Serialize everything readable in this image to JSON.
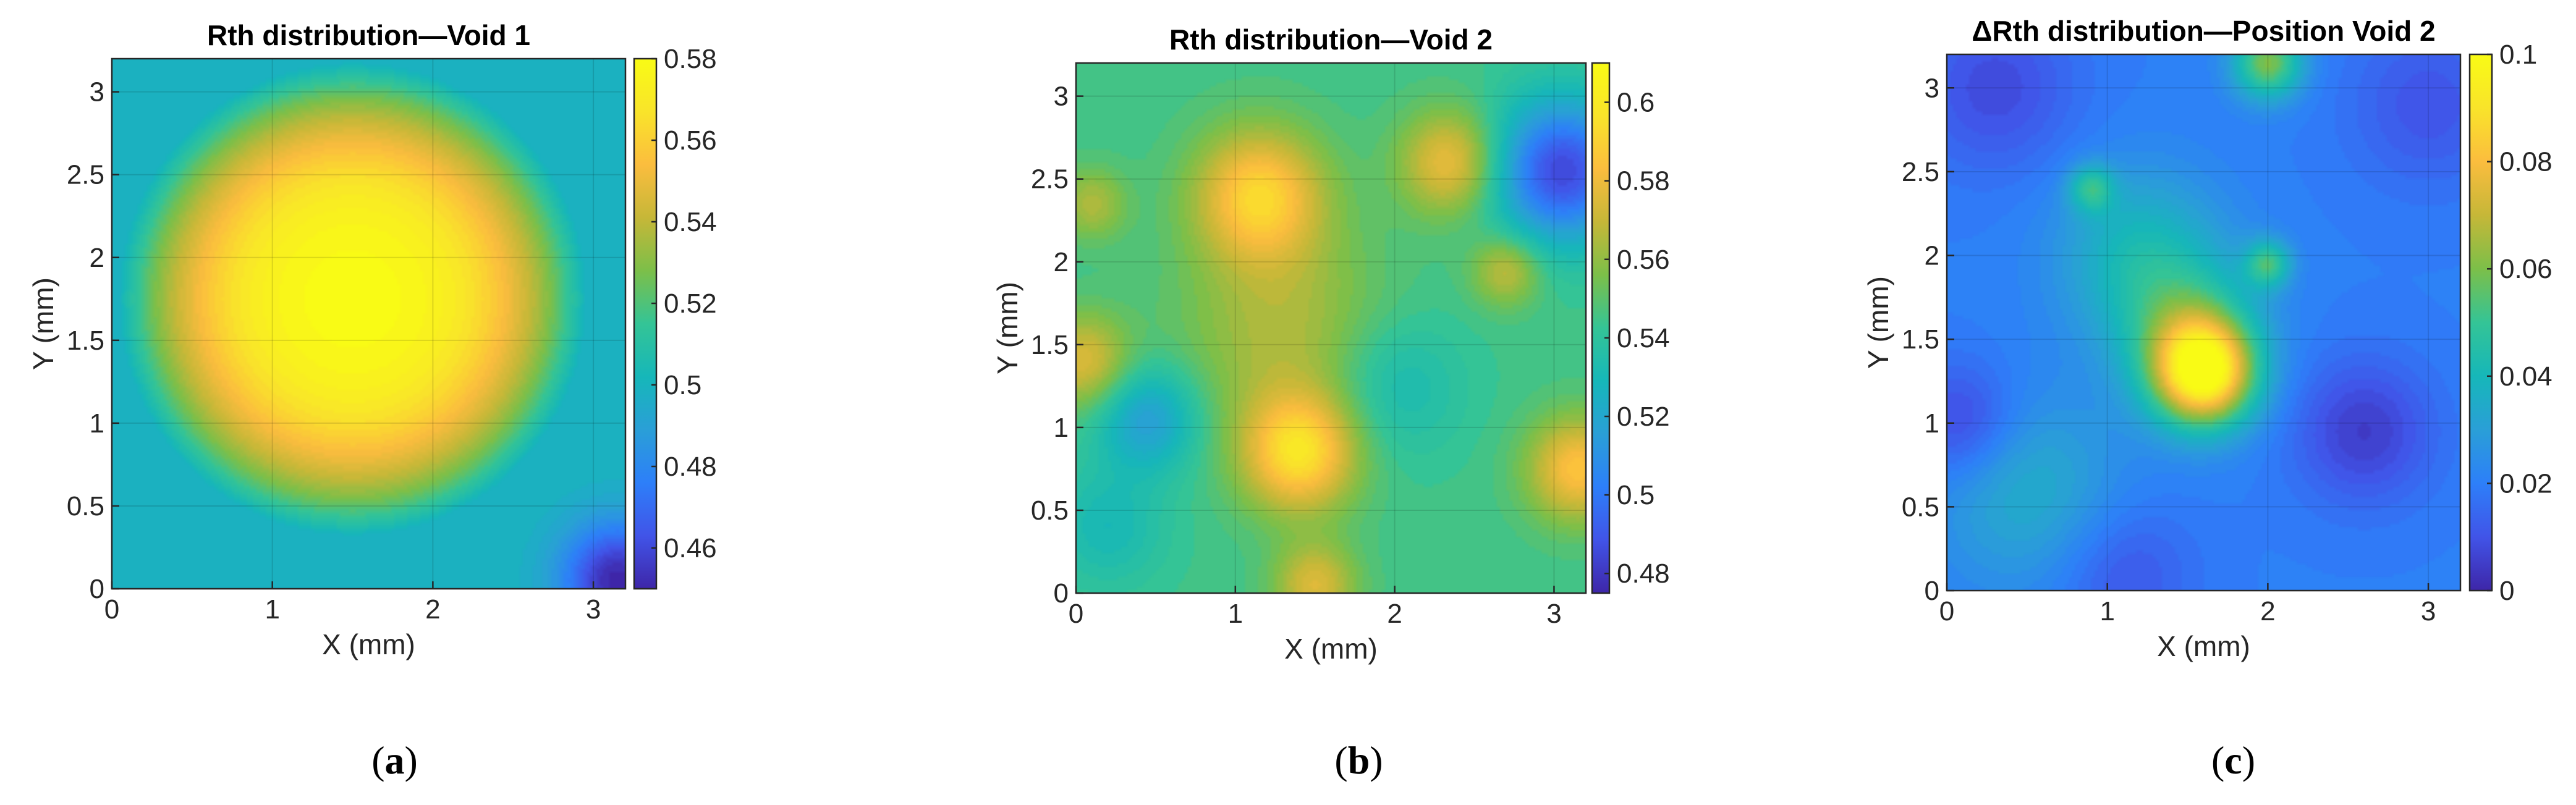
{
  "colors": {
    "colormap": [
      "#3e26a8",
      "#4154e8",
      "#2d7ff9",
      "#2a9fd7",
      "#16b7b9",
      "#34c496",
      "#7cbf49",
      "#c6b738",
      "#fbbd3e",
      "#f9e42a",
      "#f9fb15"
    ],
    "frame": "#262626",
    "grid": "#000000"
  },
  "chart_data": [
    {
      "id": "a",
      "type": "heatmap",
      "title": "Rth distribution—Void 1",
      "xlabel": "X (mm)",
      "ylabel": "Y (mm)",
      "xlim": [
        0,
        3.2
      ],
      "ylim": [
        0,
        3.2
      ],
      "xticks": [
        0,
        1,
        2,
        3
      ],
      "xtick_labels": [
        "0",
        "1",
        "2",
        "3"
      ],
      "yticks": [
        0,
        0.5,
        1,
        1.5,
        2,
        2.5,
        3
      ],
      "ytick_labels": [
        "0",
        "0.5",
        "1",
        "1.5",
        "2",
        "2.5",
        "3"
      ],
      "clim": [
        0.45,
        0.58
      ],
      "cticks": [
        0.46,
        0.48,
        0.5,
        0.52,
        0.54,
        0.56,
        0.58
      ],
      "ctick_labels": [
        "0.46",
        "0.48",
        "0.5",
        "0.52",
        "0.54",
        "0.56",
        "0.58"
      ],
      "caption": "a",
      "features": [
        {
          "kind": "dome",
          "cx": 1.5,
          "cy": 1.75,
          "peak": 0.58,
          "edge": 0.5,
          "radius": 1.45
        },
        {
          "kind": "bump",
          "x": 3.15,
          "y": 0.05,
          "amp": -0.05,
          "sigma": 0.25
        }
      ]
    },
    {
      "id": "b",
      "type": "heatmap",
      "title": "Rth distribution—Void 2",
      "xlabel": "X (mm)",
      "ylabel": "Y (mm)",
      "xlim": [
        0,
        3.2
      ],
      "ylim": [
        0,
        3.2
      ],
      "xticks": [
        0,
        1,
        2,
        3
      ],
      "xtick_labels": [
        "0",
        "1",
        "2",
        "3"
      ],
      "yticks": [
        0,
        0.5,
        1,
        1.5,
        2,
        2.5,
        3
      ],
      "ytick_labels": [
        "0",
        "0.5",
        "1",
        "1.5",
        "2",
        "2.5",
        "3"
      ],
      "clim": [
        0.475,
        0.61
      ],
      "cticks": [
        0.48,
        0.5,
        0.52,
        0.54,
        0.56,
        0.58,
        0.6
      ],
      "ctick_labels": [
        "0.48",
        "0.5",
        "0.52",
        "0.54",
        "0.56",
        "0.58",
        "0.6"
      ],
      "caption": "b",
      "base": 0.545,
      "features": [
        {
          "kind": "bump",
          "x": 1.15,
          "y": 2.4,
          "amp": 0.045,
          "sigma": 0.28
        },
        {
          "kind": "bump",
          "x": 1.4,
          "y": 0.85,
          "amp": 0.05,
          "sigma": 0.25
        },
        {
          "kind": "bump",
          "x": 1.3,
          "y": 1.6,
          "amp": 0.02,
          "sigma": 0.45
        },
        {
          "kind": "bump",
          "x": 2.35,
          "y": 2.6,
          "amp": 0.035,
          "sigma": 0.22
        },
        {
          "kind": "bump",
          "x": 2.7,
          "y": 1.95,
          "amp": 0.025,
          "sigma": 0.15
        },
        {
          "kind": "bump",
          "x": 3.15,
          "y": 0.75,
          "amp": 0.04,
          "sigma": 0.22
        },
        {
          "kind": "bump",
          "x": 0.05,
          "y": 1.4,
          "amp": 0.03,
          "sigma": 0.2
        },
        {
          "kind": "bump",
          "x": 0.1,
          "y": 2.35,
          "amp": 0.02,
          "sigma": 0.15
        },
        {
          "kind": "bump",
          "x": 1.5,
          "y": 0.05,
          "amp": 0.03,
          "sigma": 0.18
        },
        {
          "kind": "bump",
          "x": 3.05,
          "y": 2.55,
          "amp": -0.06,
          "sigma": 0.3
        },
        {
          "kind": "bump",
          "x": 0.45,
          "y": 1.05,
          "amp": -0.03,
          "sigma": 0.22
        },
        {
          "kind": "bump",
          "x": 2.0,
          "y": 1.25,
          "amp": -0.015,
          "sigma": 0.3
        },
        {
          "kind": "bump",
          "x": 0.2,
          "y": 0.4,
          "amp": -0.015,
          "sigma": 0.25
        }
      ]
    },
    {
      "id": "c",
      "type": "heatmap",
      "title": "ΔRth distribution—Position Void 2",
      "xlabel": "X (mm)",
      "ylabel": "Y (mm)",
      "xlim": [
        0,
        3.2
      ],
      "ylim": [
        0,
        3.2
      ],
      "xticks": [
        0,
        1,
        2,
        3
      ],
      "xtick_labels": [
        "0",
        "1",
        "2",
        "3"
      ],
      "yticks": [
        0,
        0.5,
        1,
        1.5,
        2,
        2.5,
        3
      ],
      "ytick_labels": [
        "0",
        "0.5",
        "1",
        "1.5",
        "2",
        "2.5",
        "3"
      ],
      "clim": [
        0,
        0.1
      ],
      "cticks": [
        0,
        0.02,
        0.04,
        0.06,
        0.08,
        0.1
      ],
      "ctick_labels": [
        "0",
        "0.02",
        "0.04",
        "0.06",
        "0.08",
        "0.1"
      ],
      "caption": "c",
      "base": 0.02,
      "features": [
        {
          "kind": "bump",
          "x": 1.6,
          "y": 1.3,
          "amp": 0.075,
          "sigma": 0.22
        },
        {
          "kind": "bump",
          "x": 1.5,
          "y": 1.55,
          "amp": 0.025,
          "sigma": 0.3
        },
        {
          "kind": "bump",
          "x": 1.2,
          "y": 2.0,
          "amp": 0.02,
          "sigma": 0.35
        },
        {
          "kind": "bump",
          "x": 2.0,
          "y": 3.15,
          "amp": 0.04,
          "sigma": 0.15
        },
        {
          "kind": "bump",
          "x": 0.5,
          "y": 0.6,
          "amp": 0.015,
          "sigma": 0.4
        },
        {
          "kind": "bump",
          "x": 2.0,
          "y": 1.95,
          "amp": 0.03,
          "sigma": 0.1
        },
        {
          "kind": "bump",
          "x": 0.9,
          "y": 2.4,
          "amp": 0.025,
          "sigma": 0.1
        },
        {
          "kind": "bump",
          "x": 2.6,
          "y": 0.95,
          "amp": -0.015,
          "sigma": 0.3
        },
        {
          "kind": "bump",
          "x": 0.1,
          "y": 1.0,
          "amp": -0.015,
          "sigma": 0.25
        },
        {
          "kind": "bump",
          "x": 0.3,
          "y": 3.0,
          "amp": -0.012,
          "sigma": 0.35
        },
        {
          "kind": "bump",
          "x": 3.0,
          "y": 2.9,
          "amp": -0.01,
          "sigma": 0.35
        },
        {
          "kind": "bump",
          "x": 1.1,
          "y": 0.1,
          "amp": -0.01,
          "sigma": 0.3
        }
      ]
    }
  ]
}
